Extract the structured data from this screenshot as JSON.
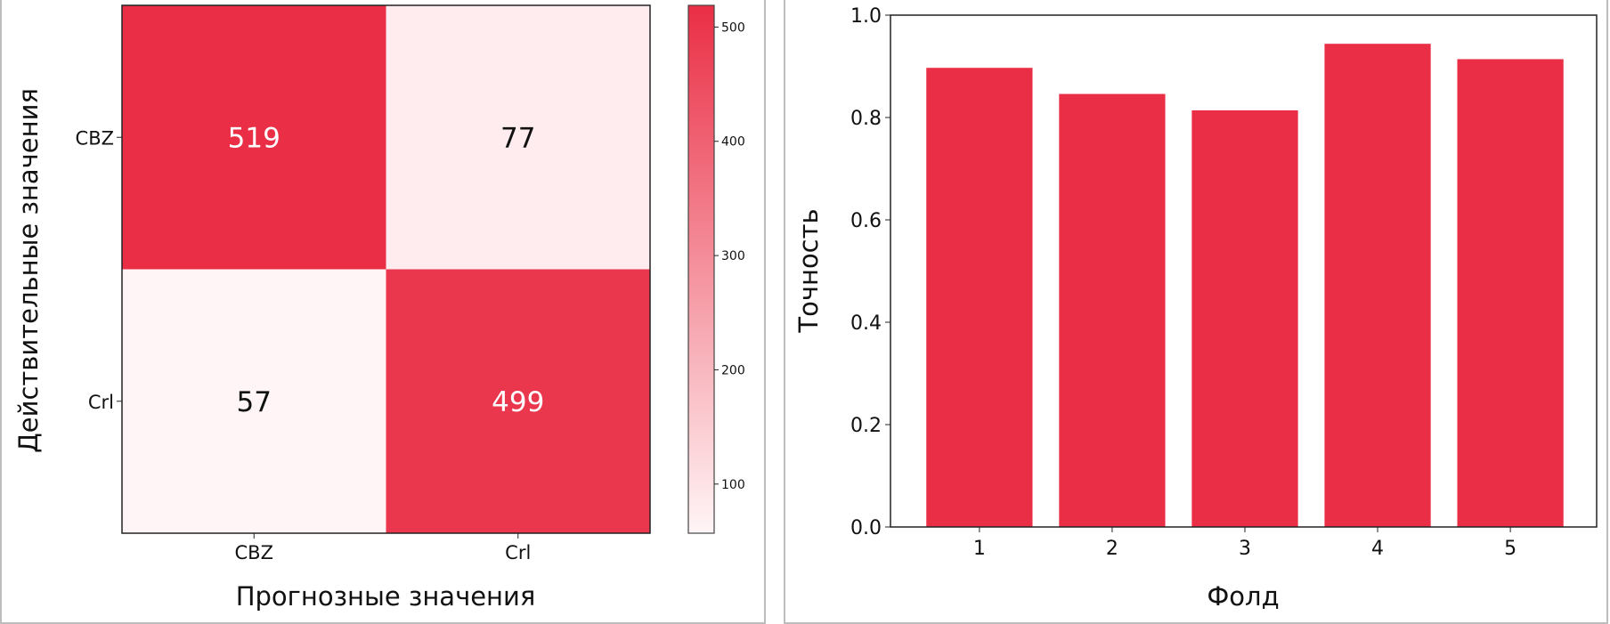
{
  "chart_data": [
    {
      "type": "heatmap",
      "title": "",
      "xlabel": "Прогнозные значения",
      "ylabel": "Действительные значения",
      "x_categories": [
        "CBZ",
        "Crl"
      ],
      "y_categories": [
        "CBZ",
        "Crl"
      ],
      "values": [
        [
          519,
          77
        ],
        [
          57,
          499
        ]
      ],
      "colorbar": {
        "min": 57,
        "max": 519,
        "ticks": [
          100,
          200,
          300,
          400,
          500
        ],
        "tick_labels": [
          "100",
          "200",
          "300",
          "400",
          "500"
        ]
      },
      "colors": {
        "low": "#fff5f6",
        "high": "#ea2e45",
        "text_dark": "#111111",
        "text_light": "#ffffff"
      }
    },
    {
      "type": "bar",
      "title": "",
      "xlabel": "Фолд",
      "ylabel": "Точность",
      "categories": [
        "1",
        "2",
        "3",
        "4",
        "5"
      ],
      "values": [
        0.897,
        0.846,
        0.814,
        0.944,
        0.914
      ],
      "ylim": [
        0,
        1.0
      ],
      "yticks": [
        0.0,
        0.2,
        0.4,
        0.6,
        0.8,
        1.0
      ],
      "ytick_labels": [
        "0.0",
        "0.2",
        "0.4",
        "0.6",
        "0.8",
        "1.0"
      ],
      "grid": false,
      "colors": {
        "bar": "#ea2e45"
      }
    }
  ]
}
